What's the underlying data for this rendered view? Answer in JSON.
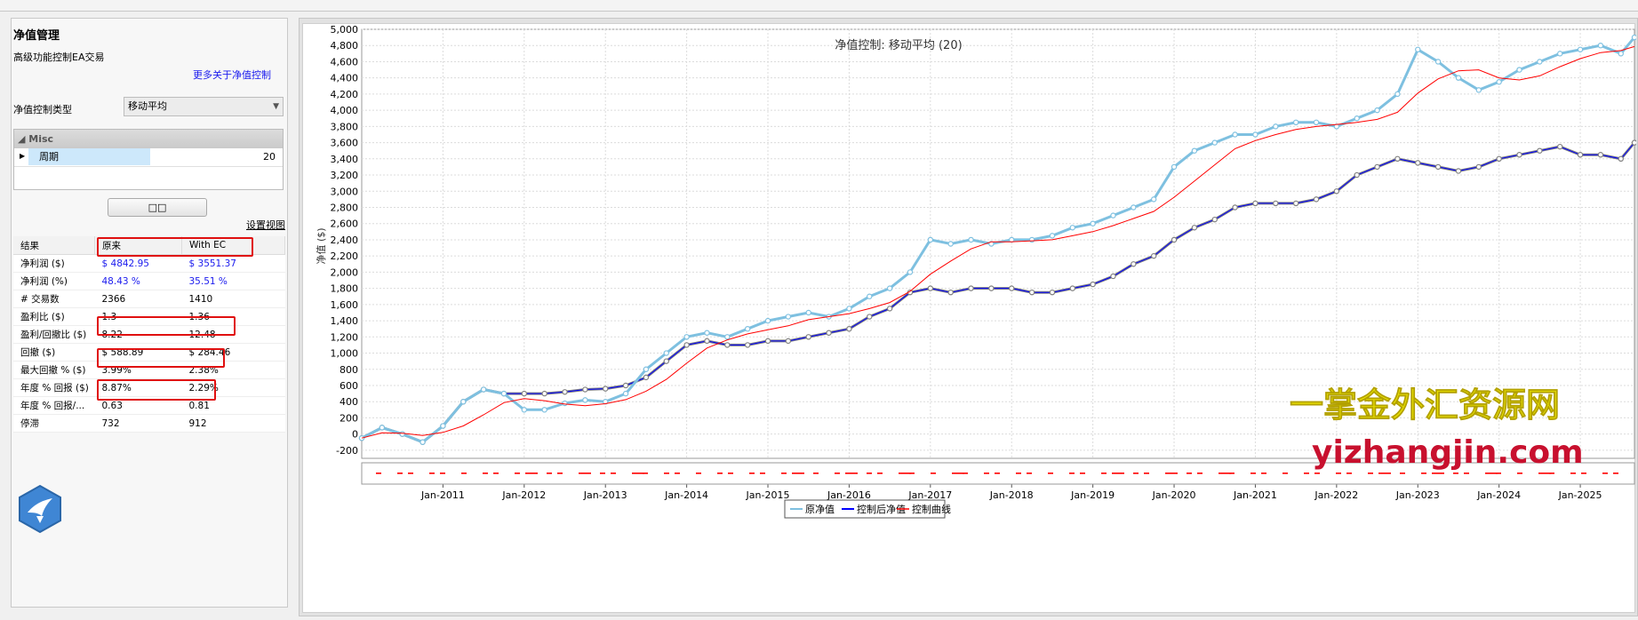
{
  "left_panel": {
    "title": "净值管理",
    "subtitle": "高级功能控制EA交易",
    "more_link": "更多关于净值控制",
    "type_label": "净值控制类型",
    "type_value": "移动平均",
    "prop_category": "Misc",
    "prop_name": "周期",
    "prop_value": "20",
    "apply_button": "□□",
    "settings_link": "设置视图"
  },
  "results": {
    "headers": [
      "结果",
      "原来",
      "With EC"
    ],
    "rows": [
      {
        "label": "净利润 ($)",
        "orig": "$ 4842.95",
        "ec": "$ 3551.37"
      },
      {
        "label": "净利润 (%)",
        "orig": "48.43 %",
        "ec": "35.51 %"
      },
      {
        "label": "# 交易数",
        "orig": "2366",
        "ec": "1410"
      },
      {
        "label": "盈利比 ($)",
        "orig": "1.3",
        "ec": "1.36"
      },
      {
        "label": "盈利/回撤比 ($)",
        "orig": "8.22",
        "ec": "12.48"
      },
      {
        "label": "回撤 ($)",
        "orig": "$ 588.89",
        "ec": "$ 284.46"
      },
      {
        "label": "最大回撤 % ($)",
        "orig": "3.99%",
        "ec": "2.38%"
      },
      {
        "label": "年度 % 回报 ($)",
        "orig": "8.87%",
        "ec": "2.29%"
      },
      {
        "label": "年度 % 回报/...",
        "orig": "0.63",
        "ec": "0.81"
      },
      {
        "label": "停滞",
        "orig": "732",
        "ec": "912"
      }
    ]
  },
  "watermark": {
    "line1": "一掌金外汇资源网",
    "line2": "yizhangjin.com"
  },
  "colors": {
    "original": "#7ec0e0",
    "controlled": "#808080",
    "controlled_line": "#0000ff",
    "ma_line": "#ff0000",
    "watermark1": "#e8e000",
    "watermark2": "#c8102e",
    "highlight": "#e01010"
  },
  "chart_data": {
    "type": "line",
    "title": "净值控制: 移动平均 (20)",
    "ylabel": "净值 ($)",
    "xlabel": "",
    "ylim": [
      -300,
      5000
    ],
    "xlim": [
      "2010-01",
      "2025-09"
    ],
    "y_ticks": [
      "5,000",
      "4,800",
      "4,600",
      "4,400",
      "4,200",
      "4,000",
      "3,800",
      "3,600",
      "3,400",
      "3,200",
      "3,000",
      "2,800",
      "2,600",
      "2,400",
      "2,200",
      "2,000",
      "1,800",
      "1,600",
      "1,400",
      "1,200",
      "1,000",
      "800",
      "600",
      "400",
      "200",
      "0",
      "-200"
    ],
    "x_ticks": [
      "Jan-2011",
      "Jan-2012",
      "Jan-2013",
      "Jan-2014",
      "Jan-2015",
      "Jan-2016",
      "Jan-2017",
      "Jan-2018",
      "Jan-2019",
      "Jan-2020",
      "Jan-2021",
      "Jan-2022",
      "Jan-2023",
      "Jan-2024",
      "Jan-2025"
    ],
    "legend": [
      "原净值",
      "控制后净值",
      "控制曲线"
    ],
    "legend_position": "bottom",
    "grid": true,
    "x": [
      "2010-01",
      "2010-04",
      "2010-07",
      "2010-10",
      "2011-01",
      "2011-04",
      "2011-07",
      "2011-10",
      "2012-01",
      "2012-04",
      "2012-07",
      "2012-10",
      "2013-01",
      "2013-04",
      "2013-07",
      "2013-10",
      "2014-01",
      "2014-04",
      "2014-07",
      "2014-10",
      "2015-01",
      "2015-04",
      "2015-07",
      "2015-10",
      "2016-01",
      "2016-04",
      "2016-07",
      "2016-10",
      "2017-01",
      "2017-04",
      "2017-07",
      "2017-10",
      "2018-01",
      "2018-04",
      "2018-07",
      "2018-10",
      "2019-01",
      "2019-04",
      "2019-07",
      "2019-10",
      "2020-01",
      "2020-04",
      "2020-07",
      "2020-10",
      "2021-01",
      "2021-04",
      "2021-07",
      "2021-10",
      "2022-01",
      "2022-04",
      "2022-07",
      "2022-10",
      "2023-01",
      "2023-04",
      "2023-07",
      "2023-10",
      "2024-01",
      "2024-04",
      "2024-07",
      "2024-10",
      "2025-01",
      "2025-04",
      "2025-07",
      "2025-09"
    ],
    "series": [
      {
        "name": "原净值",
        "values": [
          -50,
          80,
          0,
          -100,
          100,
          400,
          550,
          500,
          300,
          300,
          380,
          420,
          400,
          500,
          800,
          1000,
          1200,
          1250,
          1200,
          1300,
          1400,
          1450,
          1500,
          1450,
          1550,
          1700,
          1800,
          2000,
          2400,
          2350,
          2400,
          2350,
          2400,
          2400,
          2450,
          2550,
          2600,
          2700,
          2800,
          2900,
          3300,
          3500,
          3600,
          3700,
          3700,
          3800,
          3850,
          3850,
          3800,
          3900,
          4000,
          4200,
          4750,
          4600,
          4400,
          4250,
          4350,
          4500,
          4600,
          4700,
          4750,
          4800,
          4700,
          4900
        ]
      },
      {
        "name": "控制后净值",
        "values": [
          -50,
          80,
          0,
          -100,
          100,
          400,
          550,
          500,
          500,
          500,
          520,
          550,
          560,
          600,
          700,
          900,
          1100,
          1150,
          1100,
          1100,
          1150,
          1150,
          1200,
          1250,
          1300,
          1450,
          1550,
          1750,
          1800,
          1750,
          1800,
          1800,
          1800,
          1750,
          1750,
          1800,
          1850,
          1950,
          2100,
          2200,
          2400,
          2550,
          2650,
          2800,
          2850,
          2850,
          2850,
          2900,
          3000,
          3200,
          3300,
          3400,
          3350,
          3300,
          3250,
          3300,
          3400,
          3450,
          3500,
          3550,
          3450,
          3450,
          3400,
          3600
        ]
      }
    ]
  }
}
